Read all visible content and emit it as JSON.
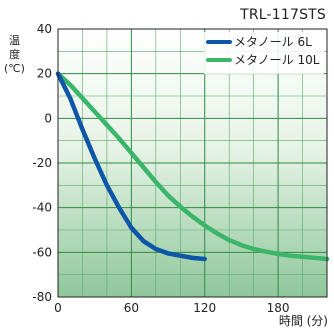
{
  "chart_data": {
    "type": "line",
    "title": "TRL-117STS",
    "ylabel_chars": [
      "温",
      "度",
      "(℃)"
    ],
    "xlabel": "時間 (分)",
    "xlim": [
      0,
      220
    ],
    "ylim": [
      -80,
      40
    ],
    "x_ticks": [
      0,
      60,
      120,
      180
    ],
    "y_ticks": [
      40,
      20,
      0,
      -20,
      -40,
      -60,
      -80
    ],
    "legend_position": "top-right",
    "grid": true,
    "series": [
      {
        "name": "メタノール 6L",
        "color": "#0d56a8",
        "x": [
          0,
          10,
          20,
          30,
          40,
          50,
          60,
          70,
          80,
          90,
          100,
          110,
          120
        ],
        "y": [
          20,
          9,
          -5,
          -18,
          -30,
          -40,
          -49,
          -55,
          -58.5,
          -60.5,
          -61.5,
          -62.5,
          -63
        ]
      },
      {
        "name": "メタノール 10L",
        "color": "#3ab56a",
        "x": [
          0,
          10,
          20,
          30,
          40,
          50,
          60,
          70,
          80,
          90,
          100,
          110,
          120,
          130,
          140,
          150,
          160,
          170,
          180,
          190,
          200,
          210,
          220
        ],
        "y": [
          20,
          15,
          9,
          3,
          -3,
          -9,
          -15.5,
          -22,
          -28.5,
          -34.5,
          -39.5,
          -44,
          -48,
          -51.5,
          -54.5,
          -56.8,
          -58.5,
          -59.7,
          -60.7,
          -61.5,
          -62,
          -62.5,
          -63
        ]
      }
    ]
  }
}
